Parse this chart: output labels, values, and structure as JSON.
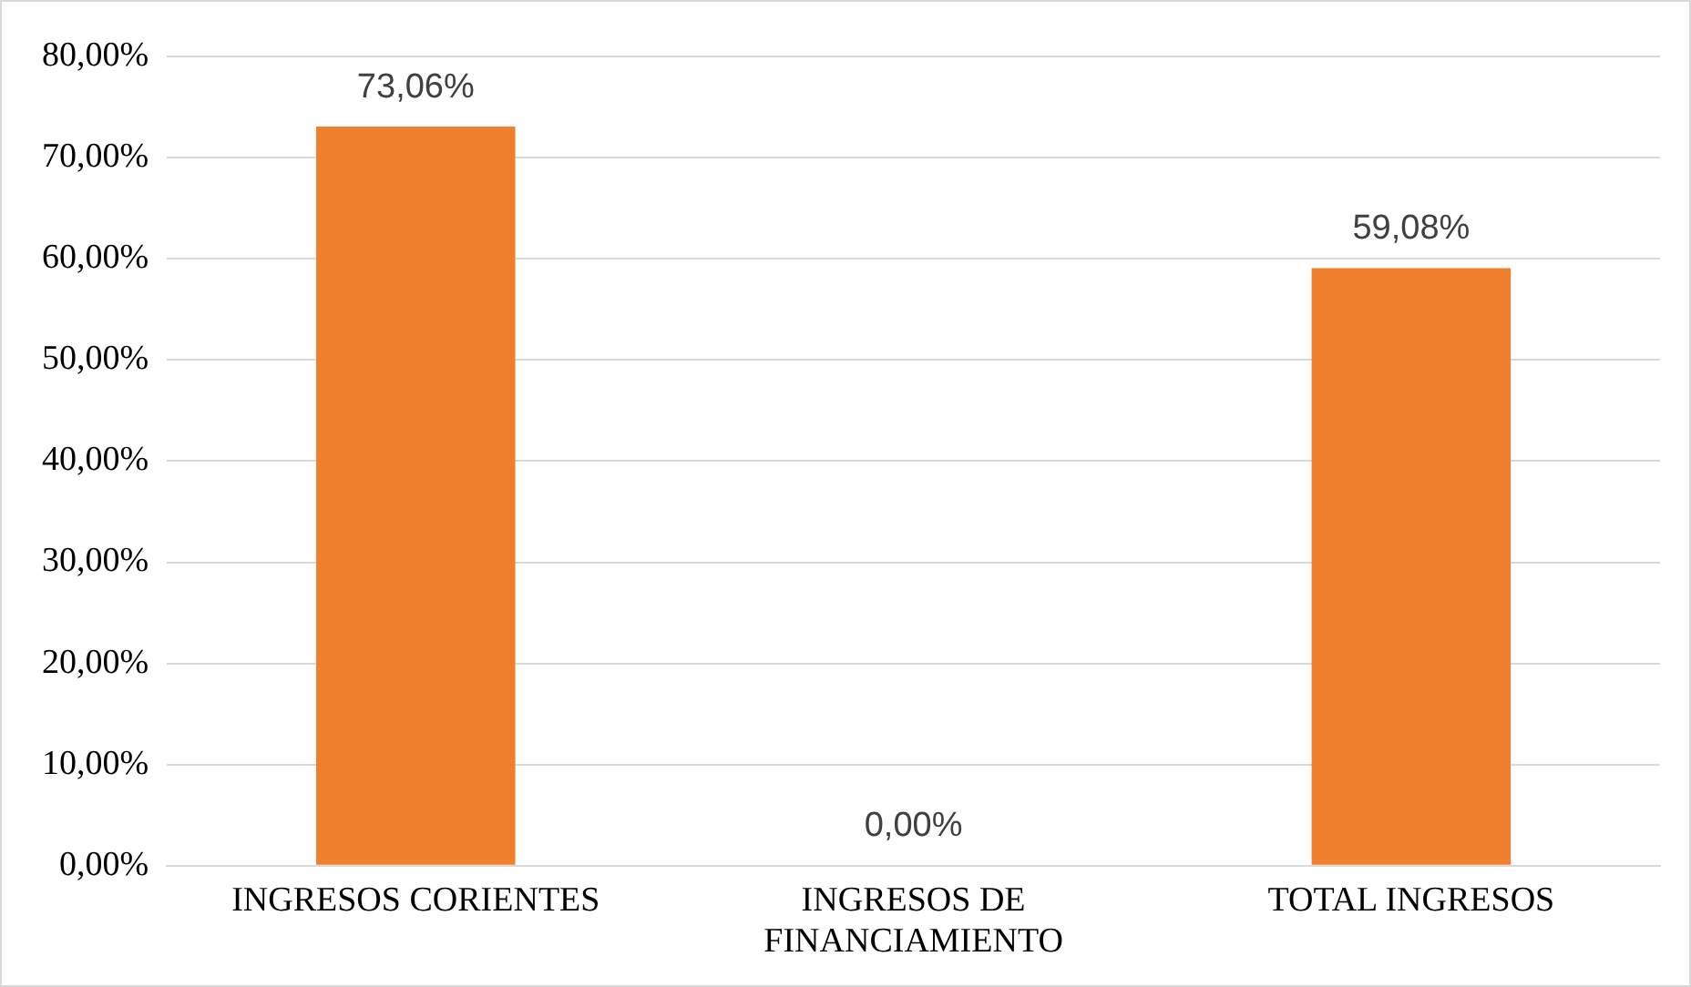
{
  "chart_data": {
    "type": "bar",
    "categories": [
      "INGRESOS CORIENTES",
      "INGRESOS DE FINANCIAMIENTO",
      "TOTAL INGRESOS"
    ],
    "values": [
      73.06,
      0,
      59.08
    ],
    "color": "#f07f2e",
    "value_labels": [
      "73,06%",
      "0,00%",
      "59,08%"
    ],
    "ylim": [
      0,
      80
    ],
    "yticks": [
      {
        "value": 0,
        "label": "0,00%"
      },
      {
        "value": 10,
        "label": "10,00%"
      },
      {
        "value": 20,
        "label": "20,00%"
      },
      {
        "value": 30,
        "label": "30,00%"
      },
      {
        "value": 40,
        "label": "40,00%"
      },
      {
        "value": 50,
        "label": "50,00%"
      },
      {
        "value": 60,
        "label": "60,00%"
      },
      {
        "value": 70,
        "label": "70,00%"
      },
      {
        "value": 80,
        "label": "80,00%"
      }
    ],
    "grid": "y",
    "legend": false
  }
}
